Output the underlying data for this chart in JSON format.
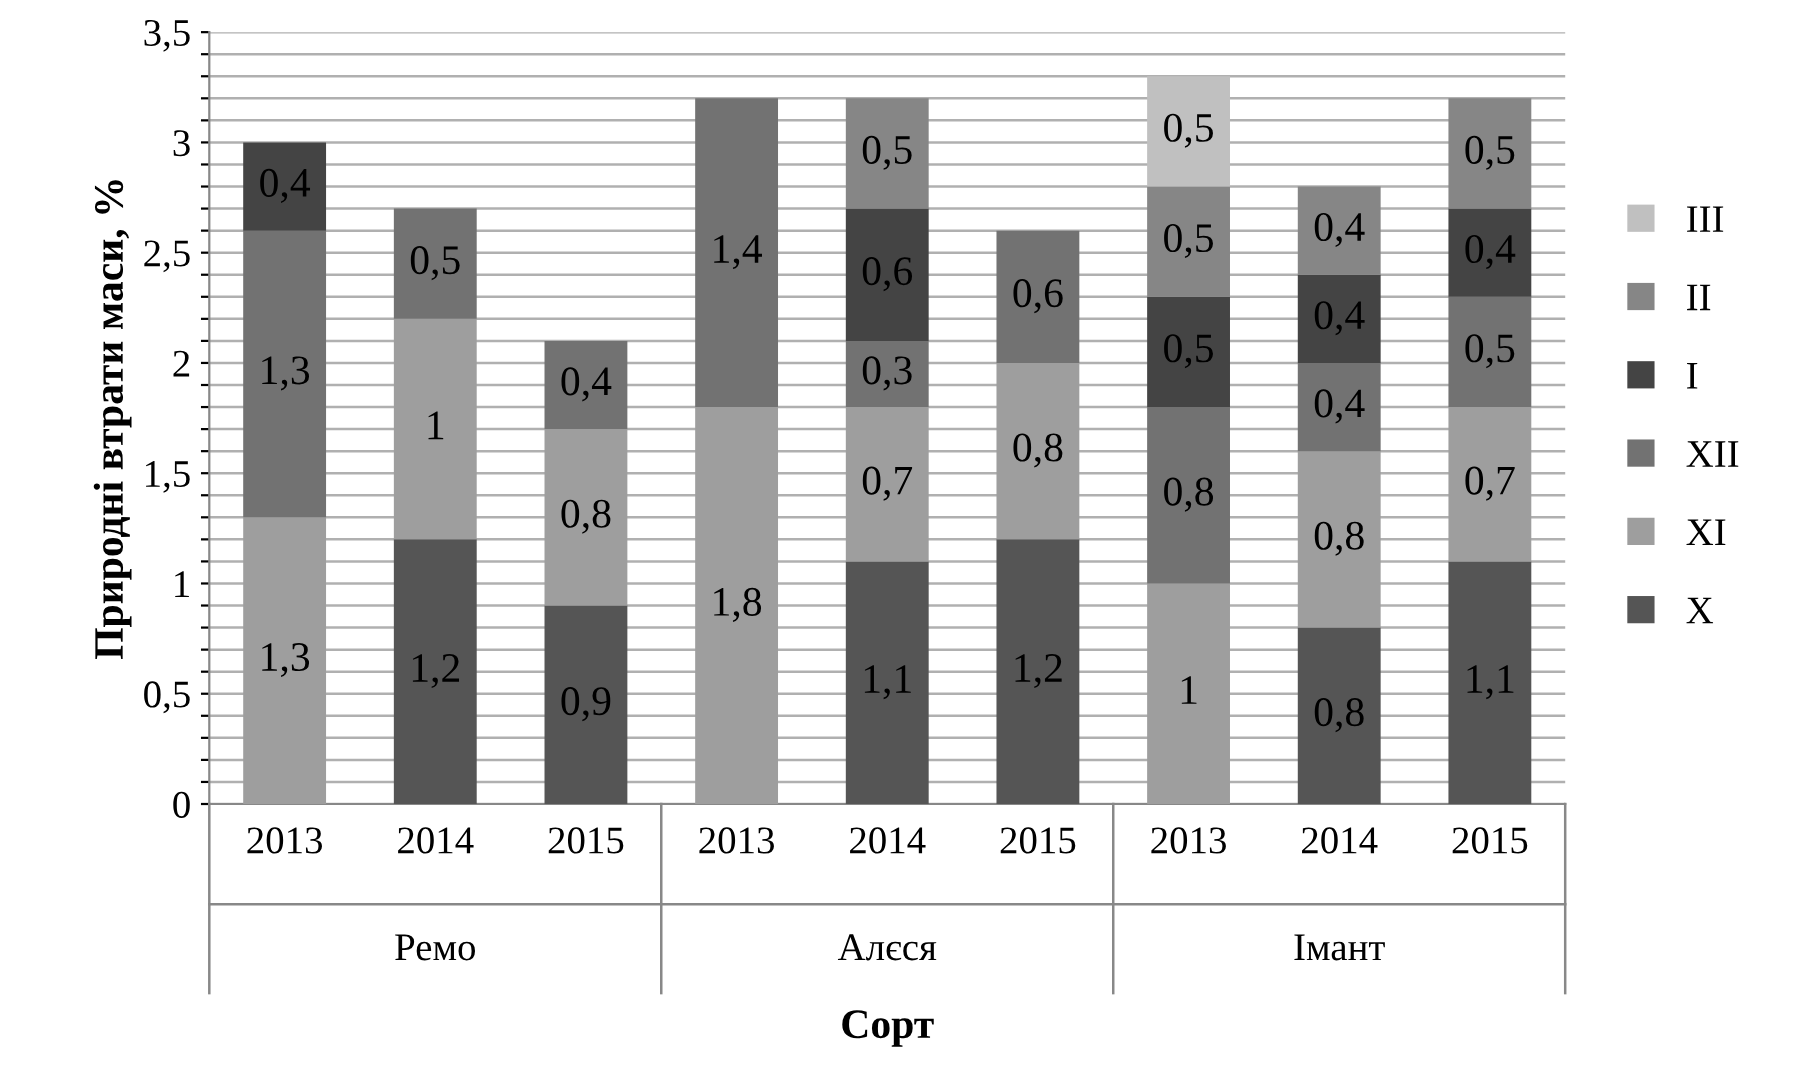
{
  "chart_data": {
    "type": "bar",
    "stacked": true,
    "xlabel": "Сорт",
    "ylabel": "Природні втрати маси, %",
    "categories": [
      "2013",
      "2014",
      "2015",
      "2013",
      "2014",
      "2015",
      "2013",
      "2014",
      "2015"
    ],
    "annotations": [
      "Ремо",
      "Алєся",
      "Імант"
    ],
    "series": [
      {
        "name": "X",
        "color": "#555555",
        "values": [
          null,
          1.2,
          0.9,
          null,
          1.1,
          1.2,
          null,
          0.8,
          1.1
        ],
        "value_labels": [
          null,
          "1,2",
          "0,9",
          null,
          "1,1",
          "1,2",
          null,
          "0,8",
          "1,1"
        ]
      },
      {
        "name": "XI",
        "color": "#9e9e9e",
        "values": [
          1.3,
          1,
          0.8,
          1.8,
          0.7,
          0.8,
          1,
          0.8,
          0.7
        ],
        "value_labels": [
          "1,3",
          "1",
          "0,8",
          "1,8",
          "0,7",
          "0,8",
          "1",
          "0,8",
          "0,7"
        ]
      },
      {
        "name": "XII",
        "color": "#727272",
        "values": [
          1.3,
          0.5,
          0.4,
          1.4,
          0.3,
          0.6,
          0.8,
          0.4,
          0.5
        ],
        "value_labels": [
          "1,3",
          "0,5",
          "0,4",
          "1,4",
          "0,3",
          "0,6",
          "0,8",
          "0,4",
          "0,5"
        ]
      },
      {
        "name": "I",
        "color": "#444444",
        "values": [
          0.4,
          null,
          null,
          null,
          0.6,
          null,
          0.5,
          0.4,
          0.4
        ],
        "value_labels": [
          "0,4",
          null,
          null,
          null,
          "0,6",
          null,
          "0,5",
          "0,4",
          "0,4"
        ]
      },
      {
        "name": "II",
        "color": "#868686",
        "values": [
          null,
          null,
          null,
          null,
          0.5,
          null,
          0.5,
          0.4,
          0.5
        ],
        "value_labels": [
          null,
          null,
          null,
          null,
          "0,5",
          null,
          "0,5",
          "0,4",
          "0,5"
        ]
      },
      {
        "name": "III",
        "color": "#c0c0c0",
        "values": [
          null,
          null,
          null,
          null,
          null,
          null,
          0.5,
          null,
          null
        ],
        "value_labels": [
          null,
          null,
          null,
          null,
          null,
          null,
          "0,5",
          null,
          null
        ]
      }
    ],
    "ylim": [
      0,
      3.5
    ],
    "yticks": [
      0,
      {
        "value": 0.1,
        "label": null
      },
      {
        "value": 0.2,
        "label": null
      },
      {
        "value": 0.3,
        "label": null
      },
      {
        "value": 0.4,
        "label": null
      },
      {
        "value": 0.5,
        "label": "0,5"
      },
      {
        "value": 0.6,
        "label": null
      },
      {
        "value": 0.7,
        "label": null
      },
      {
        "value": 0.8,
        "label": null
      },
      {
        "value": 0.9,
        "label": null
      },
      1,
      {
        "value": 1.1,
        "label": null
      },
      {
        "value": 1.2,
        "label": null
      },
      {
        "value": 1.3,
        "label": null
      },
      {
        "value": 1.4,
        "label": null
      },
      {
        "value": 1.5,
        "label": "1,5"
      },
      {
        "value": 1.6,
        "label": null
      },
      {
        "value": 1.7,
        "label": null
      },
      {
        "value": 1.8,
        "label": null
      },
      {
        "value": 1.9,
        "label": null
      },
      2,
      {
        "value": 2.1,
        "label": null
      },
      {
        "value": 2.2,
        "label": null
      },
      {
        "value": 2.3,
        "label": null
      },
      {
        "value": 2.4,
        "label": null
      },
      {
        "value": 2.5,
        "label": "2,5"
      },
      {
        "value": 2.6,
        "label": null
      },
      {
        "value": 2.7,
        "label": null
      },
      {
        "value": 2.8,
        "label": null
      },
      {
        "value": 2.9,
        "label": null
      },
      3,
      {
        "value": 3.1,
        "label": null
      },
      {
        "value": 3.2,
        "label": null
      },
      {
        "value": 3.3,
        "label": null
      },
      {
        "value": 3.4,
        "label": null
      },
      {
        "value": 3.5,
        "label": "3,5"
      }
    ],
    "grid": "y",
    "legend": "right"
  }
}
